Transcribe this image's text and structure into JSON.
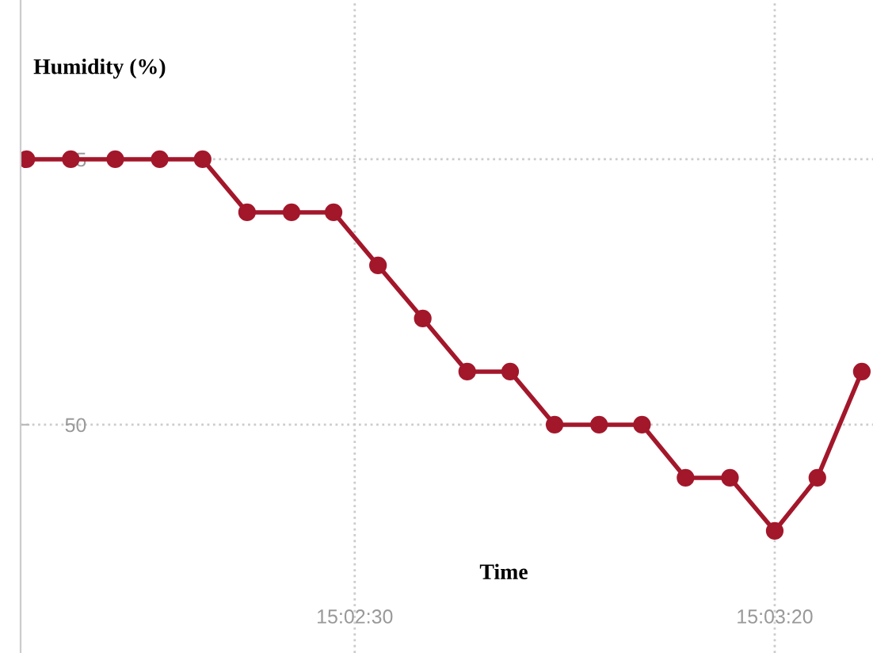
{
  "chart_data": {
    "type": "line",
    "xlabel": "Time",
    "ylabel": "Humidity (%)",
    "x": [
      15.03081,
      15.03228,
      15.03375,
      15.03522,
      15.03664,
      15.03811,
      15.03958,
      15.04097,
      15.04244,
      15.04392,
      15.04539,
      15.04681,
      15.04828,
      15.04975,
      15.05117,
      15.05261,
      15.05408,
      15.05556,
      15.05697,
      15.05844
    ],
    "series": [
      {
        "color": "#a3172b",
        "values": [
          55.0,
          55.0,
          55.0,
          55.0,
          55.0,
          54.0,
          54.0,
          54.0,
          53.0,
          52.0,
          51.0,
          51.0,
          50.0,
          50.0,
          50.0,
          49.0,
          49.0,
          48.0,
          49.0,
          51.0
        ]
      }
    ],
    "xlim": [
      15.03062,
      15.05881
    ],
    "ylim": [
      45.7,
      58.0
    ],
    "xticks": [
      {
        "value": 15.04167,
        "label": "15:02:30"
      },
      {
        "value": 15.05556,
        "label": "15:03:20"
      }
    ],
    "yticks": [
      50,
      55
    ],
    "grid": true,
    "marker": "circle",
    "line_style": "solid",
    "legend": false
  }
}
